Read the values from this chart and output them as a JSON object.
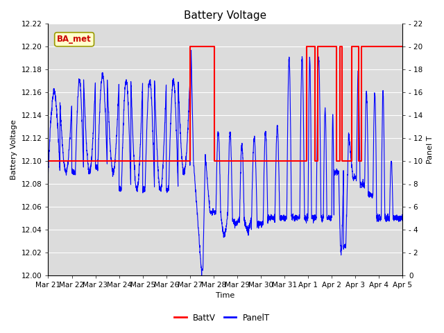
{
  "title": "Battery Voltage",
  "xlabel": "Time",
  "ylabel_left": "Battery Voltage",
  "ylabel_right": "Panel T",
  "annotation": "BA_met",
  "ylim_left": [
    12.0,
    12.22
  ],
  "ylim_right": [
    0,
    22
  ],
  "yticks_left": [
    12.0,
    12.02,
    12.04,
    12.06,
    12.08,
    12.1,
    12.12,
    12.14,
    12.16,
    12.18,
    12.2,
    12.22
  ],
  "yticks_right": [
    0,
    2,
    4,
    6,
    8,
    10,
    12,
    14,
    16,
    18,
    20,
    22
  ],
  "xtick_labels": [
    "Mar 21",
    "Mar 22",
    "Mar 23",
    "Mar 24",
    "Mar 25",
    "Mar 26",
    "Mar 27",
    "Mar 28",
    "Mar 29",
    "Mar 30",
    "Mar 31",
    "Apr 1",
    "Apr 2",
    "Apr 3",
    "Apr 4",
    "Apr 5"
  ],
  "batt_color": "#FF0000",
  "panel_color": "#0000FF",
  "background_color": "#DCDCDC",
  "grid_color": "#FFFFFF",
  "title_fontsize": 11,
  "axis_fontsize": 8,
  "tick_fontsize": 7.5
}
